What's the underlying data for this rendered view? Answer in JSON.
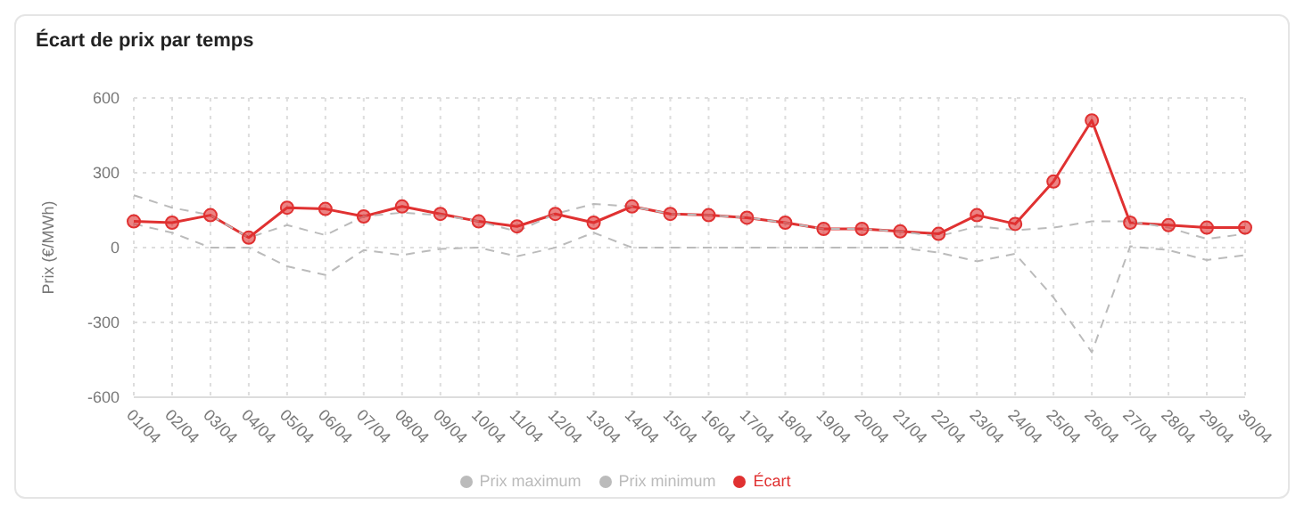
{
  "chart_data": {
    "type": "line",
    "title": "Écart de prix par temps",
    "ylabel": "Prix (€/MWh)",
    "categories": [
      "01/04",
      "02/04",
      "03/04",
      "04/04",
      "05/04",
      "06/04",
      "07/04",
      "08/04",
      "09/04",
      "10/04",
      "11/04",
      "12/04",
      "13/04",
      "14/04",
      "15/04",
      "16/04",
      "17/04",
      "18/04",
      "19/04",
      "20/04",
      "21/04",
      "22/04",
      "23/04",
      "24/04",
      "25/04",
      "26/04",
      "27/04",
      "28/04",
      "29/04",
      "30/04"
    ],
    "series": [
      {
        "name": "Écart",
        "color": "#e03131",
        "marker": "circle",
        "line_style": "solid",
        "values": [
          105,
          100,
          130,
          40,
          160,
          155,
          125,
          165,
          135,
          105,
          85,
          135,
          100,
          165,
          135,
          130,
          120,
          100,
          75,
          75,
          65,
          55,
          130,
          95,
          265,
          510,
          100,
          90,
          80,
          80
        ]
      },
      {
        "name": "Prix maximum",
        "color": "#bbbbbb",
        "marker": "none",
        "line_style": "dashed",
        "values": [
          210,
          160,
          130,
          40,
          90,
          50,
          125,
          140,
          130,
          105,
          65,
          135,
          175,
          165,
          135,
          130,
          120,
          100,
          75,
          75,
          65,
          45,
          85,
          70,
          80,
          105,
          105,
          80,
          35,
          55
        ]
      },
      {
        "name": "Prix minimum",
        "color": "#bbbbbb",
        "marker": "none",
        "line_style": "dashed",
        "values": [
          95,
          60,
          0,
          0,
          -75,
          -110,
          -10,
          -30,
          -5,
          0,
          -35,
          0,
          60,
          0,
          0,
          0,
          0,
          0,
          0,
          0,
          0,
          -20,
          -55,
          -25,
          -200,
          -420,
          5,
          -10,
          -50,
          -30
        ]
      }
    ],
    "ylim": [
      -600,
      600
    ],
    "yticks": [
      -600,
      -300,
      0,
      300,
      600
    ],
    "grid": true,
    "legend": "bottom"
  }
}
